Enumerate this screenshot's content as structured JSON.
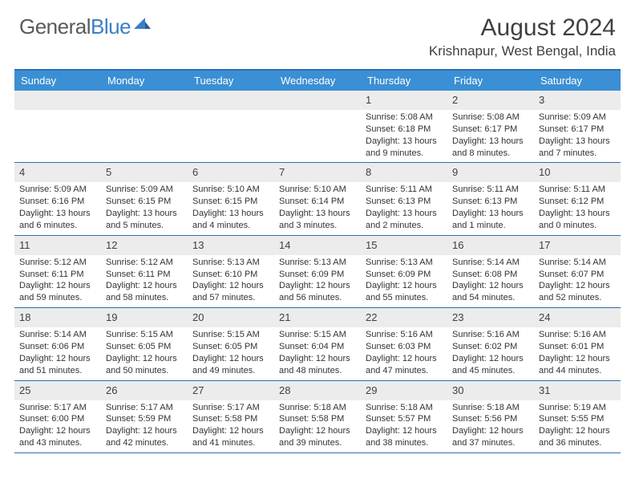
{
  "logo": {
    "part1": "General",
    "part2": "Blue"
  },
  "title": "August 2024",
  "location": "Krishnapur, West Bengal, India",
  "colors": {
    "header_bg": "#3b8fd4",
    "border": "#2b6fb5",
    "daynum_bg": "#ececec",
    "text": "#333333",
    "title_text": "#404040"
  },
  "days_of_week": [
    "Sunday",
    "Monday",
    "Tuesday",
    "Wednesday",
    "Thursday",
    "Friday",
    "Saturday"
  ],
  "weeks": [
    [
      null,
      null,
      null,
      null,
      {
        "d": "1",
        "sr": "5:08 AM",
        "ss": "6:18 PM",
        "dl": "13 hours and 9 minutes."
      },
      {
        "d": "2",
        "sr": "5:08 AM",
        "ss": "6:17 PM",
        "dl": "13 hours and 8 minutes."
      },
      {
        "d": "3",
        "sr": "5:09 AM",
        "ss": "6:17 PM",
        "dl": "13 hours and 7 minutes."
      }
    ],
    [
      {
        "d": "4",
        "sr": "5:09 AM",
        "ss": "6:16 PM",
        "dl": "13 hours and 6 minutes."
      },
      {
        "d": "5",
        "sr": "5:09 AM",
        "ss": "6:15 PM",
        "dl": "13 hours and 5 minutes."
      },
      {
        "d": "6",
        "sr": "5:10 AM",
        "ss": "6:15 PM",
        "dl": "13 hours and 4 minutes."
      },
      {
        "d": "7",
        "sr": "5:10 AM",
        "ss": "6:14 PM",
        "dl": "13 hours and 3 minutes."
      },
      {
        "d": "8",
        "sr": "5:11 AM",
        "ss": "6:13 PM",
        "dl": "13 hours and 2 minutes."
      },
      {
        "d": "9",
        "sr": "5:11 AM",
        "ss": "6:13 PM",
        "dl": "13 hours and 1 minute."
      },
      {
        "d": "10",
        "sr": "5:11 AM",
        "ss": "6:12 PM",
        "dl": "13 hours and 0 minutes."
      }
    ],
    [
      {
        "d": "11",
        "sr": "5:12 AM",
        "ss": "6:11 PM",
        "dl": "12 hours and 59 minutes."
      },
      {
        "d": "12",
        "sr": "5:12 AM",
        "ss": "6:11 PM",
        "dl": "12 hours and 58 minutes."
      },
      {
        "d": "13",
        "sr": "5:13 AM",
        "ss": "6:10 PM",
        "dl": "12 hours and 57 minutes."
      },
      {
        "d": "14",
        "sr": "5:13 AM",
        "ss": "6:09 PM",
        "dl": "12 hours and 56 minutes."
      },
      {
        "d": "15",
        "sr": "5:13 AM",
        "ss": "6:09 PM",
        "dl": "12 hours and 55 minutes."
      },
      {
        "d": "16",
        "sr": "5:14 AM",
        "ss": "6:08 PM",
        "dl": "12 hours and 54 minutes."
      },
      {
        "d": "17",
        "sr": "5:14 AM",
        "ss": "6:07 PM",
        "dl": "12 hours and 52 minutes."
      }
    ],
    [
      {
        "d": "18",
        "sr": "5:14 AM",
        "ss": "6:06 PM",
        "dl": "12 hours and 51 minutes."
      },
      {
        "d": "19",
        "sr": "5:15 AM",
        "ss": "6:05 PM",
        "dl": "12 hours and 50 minutes."
      },
      {
        "d": "20",
        "sr": "5:15 AM",
        "ss": "6:05 PM",
        "dl": "12 hours and 49 minutes."
      },
      {
        "d": "21",
        "sr": "5:15 AM",
        "ss": "6:04 PM",
        "dl": "12 hours and 48 minutes."
      },
      {
        "d": "22",
        "sr": "5:16 AM",
        "ss": "6:03 PM",
        "dl": "12 hours and 47 minutes."
      },
      {
        "d": "23",
        "sr": "5:16 AM",
        "ss": "6:02 PM",
        "dl": "12 hours and 45 minutes."
      },
      {
        "d": "24",
        "sr": "5:16 AM",
        "ss": "6:01 PM",
        "dl": "12 hours and 44 minutes."
      }
    ],
    [
      {
        "d": "25",
        "sr": "5:17 AM",
        "ss": "6:00 PM",
        "dl": "12 hours and 43 minutes."
      },
      {
        "d": "26",
        "sr": "5:17 AM",
        "ss": "5:59 PM",
        "dl": "12 hours and 42 minutes."
      },
      {
        "d": "27",
        "sr": "5:17 AM",
        "ss": "5:58 PM",
        "dl": "12 hours and 41 minutes."
      },
      {
        "d": "28",
        "sr": "5:18 AM",
        "ss": "5:58 PM",
        "dl": "12 hours and 39 minutes."
      },
      {
        "d": "29",
        "sr": "5:18 AM",
        "ss": "5:57 PM",
        "dl": "12 hours and 38 minutes."
      },
      {
        "d": "30",
        "sr": "5:18 AM",
        "ss": "5:56 PM",
        "dl": "12 hours and 37 minutes."
      },
      {
        "d": "31",
        "sr": "5:19 AM",
        "ss": "5:55 PM",
        "dl": "12 hours and 36 minutes."
      }
    ]
  ],
  "labels": {
    "sunrise": "Sunrise: ",
    "sunset": "Sunset: ",
    "daylight": "Daylight: "
  }
}
